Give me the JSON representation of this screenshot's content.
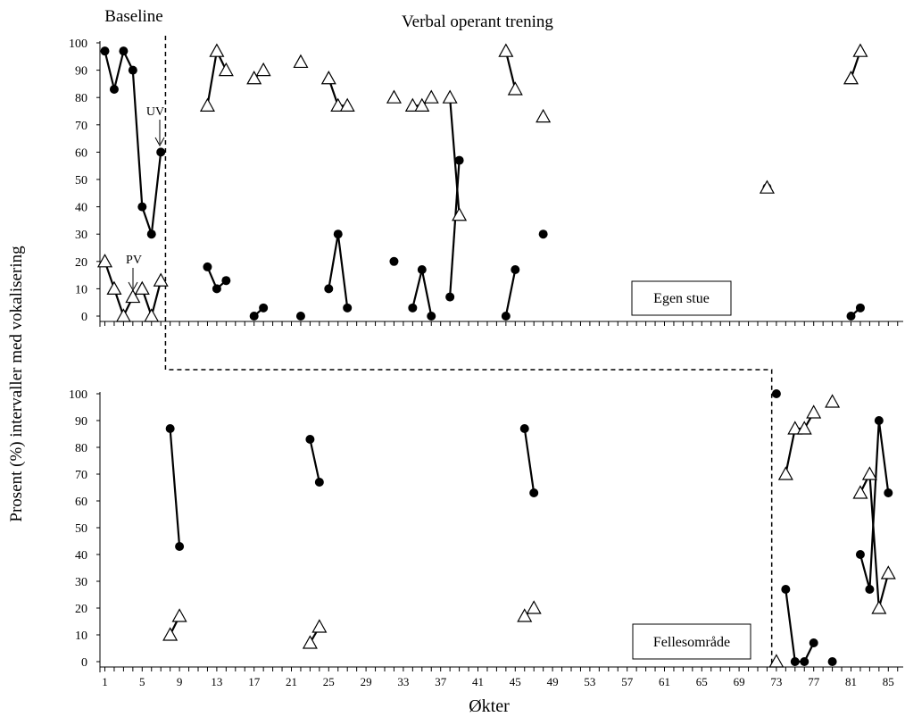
{
  "chart_data": {
    "type": "scatter",
    "phase_labels": [
      "Baseline",
      "Verbal operant trening"
    ],
    "ylabel": "Prosent (%) intervaller med vokalisering",
    "xlabel": "Økter",
    "ylim": [
      0,
      100
    ],
    "y_ticks": [
      "0",
      "10",
      "20",
      "30",
      "40",
      "50",
      "60",
      "70",
      "80",
      "90",
      "100"
    ],
    "x_ticks": [
      "1",
      "5",
      "9",
      "13",
      "17",
      "21",
      "25",
      "29",
      "33",
      "37",
      "41",
      "45",
      "49",
      "53",
      "57",
      "61",
      "65",
      "69",
      "73",
      "77",
      "81",
      "85"
    ],
    "annotations": [
      "UV",
      "PV"
    ],
    "marker_legend": {
      "filled_circle": "UV",
      "open_triangle": "PV"
    },
    "panels": [
      {
        "setting": "Egen stue",
        "phase_change_after_session": 7.5,
        "series": [
          {
            "name": "UV",
            "marker": "filled_circle",
            "points": [
              [
                1,
                97
              ],
              [
                2,
                83
              ],
              [
                3,
                97
              ],
              [
                4,
                90
              ],
              [
                5,
                40
              ],
              [
                6,
                30
              ],
              [
                7,
                60
              ],
              [
                12,
                18
              ],
              [
                13,
                10
              ],
              [
                14,
                13
              ],
              [
                17,
                0
              ],
              [
                18,
                3
              ],
              [
                22,
                0
              ],
              [
                25,
                10
              ],
              [
                26,
                30
              ],
              [
                27,
                3
              ],
              [
                32,
                20
              ],
              [
                34,
                3
              ],
              [
                35,
                17
              ],
              [
                36,
                0
              ],
              [
                38,
                7
              ],
              [
                39,
                57
              ],
              [
                44,
                0
              ],
              [
                45,
                17
              ],
              [
                48,
                30
              ],
              [
                72,
                47
              ],
              [
                81,
                0
              ],
              [
                82,
                3
              ]
            ],
            "segments": [
              [
                0,
                6
              ],
              [
                7,
                9
              ],
              [
                10,
                11
              ],
              [
                13,
                15
              ],
              [
                17,
                19
              ],
              [
                20,
                21
              ],
              [
                22,
                23
              ],
              [
                26,
                27
              ]
            ]
          },
          {
            "name": "PV",
            "marker": "open_triangle",
            "points": [
              [
                1,
                20
              ],
              [
                2,
                10
              ],
              [
                3,
                0
              ],
              [
                4,
                7
              ],
              [
                5,
                10
              ],
              [
                6,
                0
              ],
              [
                7,
                13
              ],
              [
                12,
                77
              ],
              [
                13,
                97
              ],
              [
                14,
                90
              ],
              [
                17,
                87
              ],
              [
                18,
                90
              ],
              [
                22,
                93
              ],
              [
                25,
                87
              ],
              [
                26,
                77
              ],
              [
                27,
                77
              ],
              [
                32,
                80
              ],
              [
                34,
                77
              ],
              [
                35,
                77
              ],
              [
                36,
                80
              ],
              [
                38,
                80
              ],
              [
                39,
                37
              ],
              [
                44,
                97
              ],
              [
                45,
                83
              ],
              [
                48,
                73
              ],
              [
                72,
                47
              ],
              [
                81,
                87
              ],
              [
                82,
                97
              ]
            ],
            "segments": [
              [
                0,
                6
              ],
              [
                7,
                9
              ],
              [
                10,
                11
              ],
              [
                13,
                15
              ],
              [
                17,
                19
              ],
              [
                20,
                21
              ],
              [
                22,
                23
              ],
              [
                26,
                27
              ]
            ]
          }
        ]
      },
      {
        "setting": "Fellesområde",
        "phase_change_after_session": 72.5,
        "series": [
          {
            "name": "UV",
            "marker": "filled_circle",
            "points": [
              [
                8,
                87
              ],
              [
                9,
                43
              ],
              [
                23,
                83
              ],
              [
                24,
                67
              ],
              [
                46,
                87
              ],
              [
                47,
                63
              ],
              [
                73,
                100
              ],
              [
                74,
                27
              ],
              [
                75,
                0
              ],
              [
                76,
                0
              ],
              [
                77,
                7
              ],
              [
                79,
                0
              ],
              [
                82,
                40
              ],
              [
                83,
                27
              ],
              [
                84,
                90
              ],
              [
                85,
                63
              ]
            ],
            "segments": [
              [
                0,
                1
              ],
              [
                2,
                3
              ],
              [
                4,
                5
              ],
              [
                7,
                10
              ],
              [
                12,
                15
              ]
            ]
          },
          {
            "name": "PV",
            "marker": "open_triangle",
            "points": [
              [
                8,
                10
              ],
              [
                9,
                17
              ],
              [
                23,
                7
              ],
              [
                24,
                13
              ],
              [
                46,
                17
              ],
              [
                47,
                20
              ],
              [
                73,
                0
              ],
              [
                74,
                70
              ],
              [
                75,
                87
              ],
              [
                76,
                87
              ],
              [
                77,
                93
              ],
              [
                79,
                97
              ],
              [
                82,
                63
              ],
              [
                83,
                70
              ],
              [
                84,
                20
              ],
              [
                85,
                33
              ]
            ],
            "segments": [
              [
                0,
                1
              ],
              [
                2,
                3
              ],
              [
                4,
                5
              ],
              [
                7,
                10
              ],
              [
                12,
                15
              ]
            ]
          }
        ]
      }
    ]
  }
}
